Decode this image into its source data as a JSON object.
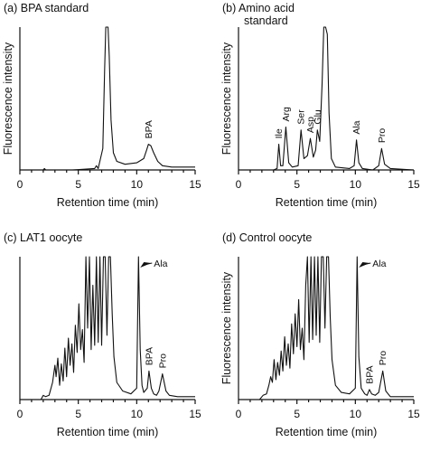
{
  "chart_data": [
    {
      "type": "line",
      "panel": "(a)",
      "title": "BPA standard",
      "xlabel": "Retention time (min)",
      "ylabel": "Fluorescence intensity",
      "xlim": [
        0,
        15
      ],
      "xticks": [
        0,
        5,
        10,
        15
      ],
      "ylim": [
        0,
        100
      ],
      "series": [
        {
          "x": [
            0,
            2,
            2.1,
            2.2,
            4.5,
            6.4,
            6.55,
            6.7,
            7.1,
            7.25,
            7.35,
            7.45,
            7.55,
            7.65,
            7.8,
            8.0,
            8.3,
            9.0,
            10.0,
            10.6,
            10.85,
            11.0,
            11.2,
            11.45,
            11.8,
            12.2,
            13,
            15
          ],
          "y": [
            0,
            0,
            1,
            0,
            0,
            1,
            3,
            1,
            15,
            70,
            100,
            100,
            100,
            80,
            35,
            12,
            6,
            4,
            5,
            8,
            14,
            18,
            17,
            12,
            6,
            3,
            2,
            2
          ]
        }
      ],
      "annotations": [
        {
          "label": "BPA",
          "x": 11.0,
          "y": 20
        }
      ]
    },
    {
      "type": "line",
      "panel": "(b)",
      "title": "Amino acid standard",
      "xlabel": "Retention time (min)",
      "ylabel": "Fluorescence intensity",
      "xlim": [
        0,
        15
      ],
      "xticks": [
        0,
        5,
        10,
        15
      ],
      "ylim": [
        0,
        100
      ],
      "series": [
        {
          "x": [
            0,
            3.0,
            3.3,
            3.45,
            3.6,
            3.8,
            4.05,
            4.3,
            4.6,
            5.1,
            5.35,
            5.6,
            5.9,
            6.15,
            6.4,
            6.6,
            6.75,
            6.95,
            7.15,
            7.3,
            7.45,
            7.6,
            7.75,
            7.95,
            8.3,
            9.5,
            9.9,
            10.1,
            10.3,
            10.6,
            11.5,
            12.0,
            12.25,
            12.5,
            13,
            15
          ],
          "y": [
            0,
            0,
            1,
            18,
            3,
            3,
            30,
            5,
            2,
            3,
            28,
            8,
            10,
            22,
            9,
            14,
            28,
            20,
            60,
            100,
            100,
            95,
            40,
            8,
            2,
            1,
            3,
            21,
            5,
            1,
            0,
            3,
            15,
            4,
            1,
            0
          ]
        }
      ],
      "annotations": [
        {
          "label": "Ile",
          "x": 3.45,
          "y": 20
        },
        {
          "label": "Arg",
          "x": 4.05,
          "y": 32
        },
        {
          "label": "Ser",
          "x": 5.35,
          "y": 30
        },
        {
          "label": "Asp",
          "x": 6.15,
          "y": 24
        },
        {
          "label": "Glu",
          "x": 6.75,
          "y": 30
        },
        {
          "label": "Ala",
          "x": 10.1,
          "y": 23
        },
        {
          "label": "Pro",
          "x": 12.25,
          "y": 17
        }
      ]
    },
    {
      "type": "line",
      "panel": "(c)",
      "title": "LAT1 oocyte",
      "xlabel": "Retention time (min)",
      "ylabel": "",
      "xlim": [
        0,
        15
      ],
      "xticks": [
        0,
        5,
        10,
        15
      ],
      "ylim": [
        0,
        100
      ],
      "series": [
        {
          "x": [
            0,
            1.8,
            2.0,
            2.2,
            2.5,
            2.8,
            3.0,
            3.1,
            3.25,
            3.4,
            3.55,
            3.7,
            3.85,
            4.0,
            4.15,
            4.3,
            4.45,
            4.6,
            4.75,
            4.9,
            5.05,
            5.2,
            5.35,
            5.5,
            5.65,
            5.8,
            5.95,
            6.1,
            6.25,
            6.4,
            6.55,
            6.7,
            6.85,
            7.0,
            7.15,
            7.3,
            7.45,
            7.6,
            7.75,
            7.9,
            8.05,
            8.3,
            8.8,
            9.5,
            10.0,
            10.15,
            10.3,
            10.45,
            10.6,
            10.9,
            11.05,
            11.25,
            11.45,
            11.7,
            11.9,
            12.2,
            12.5,
            12.8,
            13.5,
            15
          ],
          "y": [
            0,
            0,
            3,
            2,
            3,
            12,
            24,
            16,
            29,
            10,
            25,
            13,
            36,
            16,
            43,
            24,
            39,
            19,
            52,
            33,
            67,
            35,
            49,
            26,
            100,
            50,
            100,
            35,
            80,
            38,
            100,
            40,
            100,
            38,
            100,
            100,
            45,
            100,
            100,
            60,
            30,
            12,
            6,
            4,
            8,
            100,
            35,
            10,
            5,
            8,
            20,
            8,
            4,
            3,
            6,
            18,
            6,
            3,
            2,
            2
          ]
        }
      ],
      "annotations": [
        {
          "label": "Ala",
          "x": 10.15,
          "y": 100,
          "arrow": true
        },
        {
          "label": "BPA",
          "x": 11.05,
          "y": 22
        },
        {
          "label": "Pro",
          "x": 12.2,
          "y": 20
        }
      ]
    },
    {
      "type": "line",
      "panel": "(d)",
      "title": "Control oocyte",
      "xlabel": "Retention time (min)",
      "ylabel": "Fluorescence intensity",
      "xlim": [
        0,
        15
      ],
      "xticks": [
        0,
        5,
        10,
        15
      ],
      "ylim": [
        0,
        100
      ],
      "series": [
        {
          "x": [
            0,
            1.8,
            2.1,
            2.4,
            2.6,
            2.75,
            2.9,
            3.05,
            3.2,
            3.35,
            3.5,
            3.65,
            3.8,
            3.95,
            4.1,
            4.25,
            4.4,
            4.55,
            4.7,
            4.85,
            5.0,
            5.15,
            5.3,
            5.45,
            5.6,
            5.75,
            5.9,
            6.05,
            6.2,
            6.35,
            6.5,
            6.65,
            6.8,
            6.95,
            7.1,
            7.25,
            7.4,
            7.55,
            7.7,
            7.85,
            8.0,
            8.3,
            8.8,
            9.5,
            10.0,
            10.15,
            10.3,
            10.5,
            10.8,
            11.0,
            11.2,
            11.4,
            11.7,
            12.0,
            12.35,
            12.6,
            13,
            15
          ],
          "y": [
            0,
            0,
            3,
            4,
            10,
            16,
            12,
            28,
            14,
            26,
            17,
            34,
            20,
            44,
            24,
            39,
            22,
            53,
            32,
            60,
            37,
            70,
            35,
            50,
            28,
            80,
            100,
            40,
            100,
            42,
            100,
            45,
            100,
            40,
            100,
            100,
            50,
            100,
            100,
            58,
            28,
            10,
            5,
            4,
            8,
            100,
            30,
            8,
            4,
            3,
            7,
            4,
            3,
            5,
            20,
            6,
            2,
            2
          ]
        }
      ],
      "annotations": [
        {
          "label": "Ala",
          "x": 10.15,
          "y": 100,
          "arrow": true
        },
        {
          "label": "BPA",
          "x": 11.2,
          "y": 9
        },
        {
          "label": "Pro",
          "x": 12.35,
          "y": 22
        }
      ]
    }
  ]
}
